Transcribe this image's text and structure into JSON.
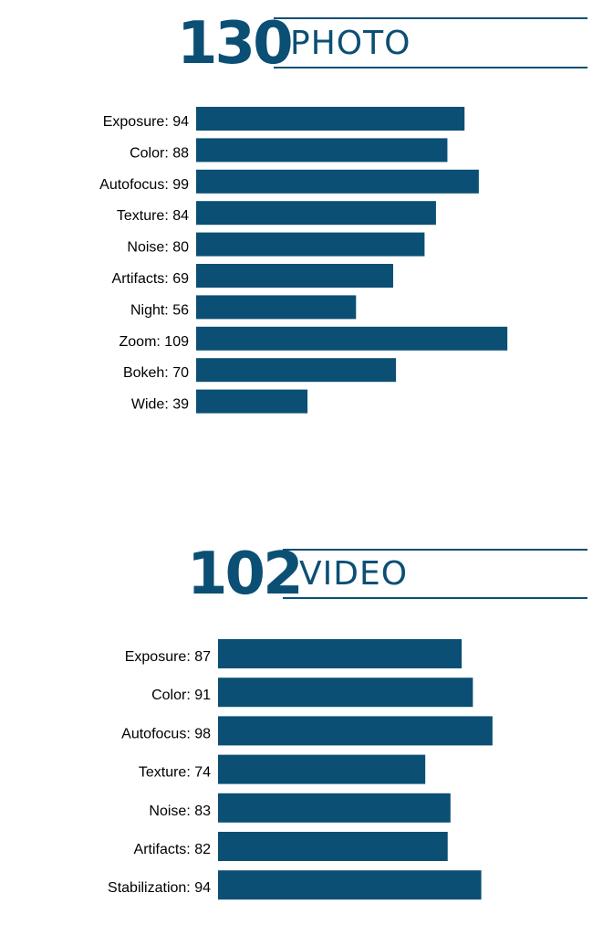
{
  "accent_color": "#0b4f74",
  "label_color": "#7f7f7f",
  "chart_data": [
    {
      "type": "bar",
      "orientation": "horizontal",
      "score": "130",
      "title": "PHOTO",
      "categories": [
        "Exposure",
        "Color",
        "Autofocus",
        "Texture",
        "Noise",
        "Artifacts",
        "Night",
        "Zoom",
        "Bokeh",
        "Wide"
      ],
      "values": [
        94,
        88,
        99,
        84,
        80,
        69,
        56,
        109,
        70,
        39
      ]
    },
    {
      "type": "bar",
      "orientation": "horizontal",
      "score": "102",
      "title": "VIDEO",
      "categories": [
        "Exposure",
        "Color",
        "Autofocus",
        "Texture",
        "Noise",
        "Artifacts",
        "Stabilization"
      ],
      "values": [
        87,
        91,
        98,
        74,
        83,
        82,
        94
      ]
    }
  ]
}
